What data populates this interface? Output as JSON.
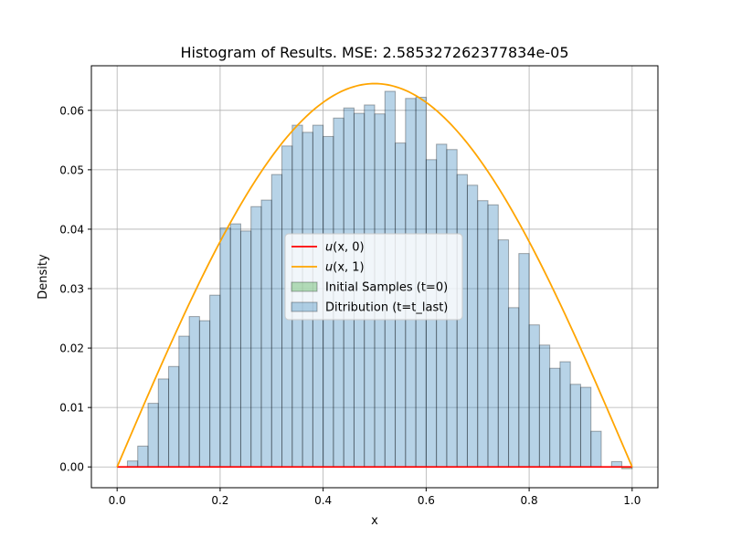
{
  "chart_data": {
    "type": "histogram",
    "title": "Histogram of Results. MSE: 2.585327262377834e-05",
    "xlabel": "x",
    "ylabel": "Density",
    "xlim": [
      -0.05,
      1.05
    ],
    "ylim": [
      -0.0035,
      0.0675
    ],
    "xticks": [
      0.0,
      0.2,
      0.4,
      0.6,
      0.8,
      1.0
    ],
    "xtick_labels": [
      "0.0",
      "0.2",
      "0.4",
      "0.6",
      "0.8",
      "1.0"
    ],
    "yticks": [
      0.0,
      0.01,
      0.02,
      0.03,
      0.04,
      0.05,
      0.06
    ],
    "ytick_labels": [
      "0.00",
      "0.01",
      "0.02",
      "0.03",
      "0.04",
      "0.05",
      "0.06"
    ],
    "grid": true,
    "legend_position": "center",
    "series": [
      {
        "name": "u(x, 0)",
        "type": "line",
        "color": "#ff0000",
        "x": [
          0,
          1
        ],
        "y": [
          0,
          0
        ]
      },
      {
        "name": "u(x, 1)",
        "type": "line",
        "color": "#ffa500",
        "function": "peak*sin(pi*x)",
        "peak": 0.0645
      },
      {
        "name": "Initial Samples (t=0)",
        "type": "hist",
        "color": "#2ca02c",
        "bin_edges": [
          0.98,
          1.0
        ],
        "values": [
          -0.0003
        ]
      },
      {
        "name": "Ditribution (t=t_last)",
        "type": "hist",
        "color": "#1f77b4",
        "bin_edges": [
          0.0,
          0.02,
          0.04,
          0.06,
          0.08,
          0.1,
          0.12,
          0.14,
          0.16,
          0.18,
          0.2,
          0.22,
          0.24,
          0.26,
          0.28,
          0.3,
          0.32,
          0.34,
          0.36,
          0.38,
          0.4,
          0.42,
          0.44,
          0.46,
          0.48,
          0.5,
          0.52,
          0.54,
          0.56,
          0.58,
          0.6,
          0.62,
          0.64,
          0.66,
          0.68,
          0.7,
          0.72,
          0.74,
          0.76,
          0.78,
          0.8,
          0.82,
          0.84,
          0.86,
          0.88,
          0.9,
          0.92,
          0.94,
          0.96,
          0.98,
          1.0
        ],
        "values": [
          0.0,
          0.001,
          0.0035,
          0.0107,
          0.0148,
          0.0169,
          0.022,
          0.0253,
          0.0246,
          0.0289,
          0.0402,
          0.0409,
          0.0397,
          0.0438,
          0.0449,
          0.0492,
          0.054,
          0.0575,
          0.0563,
          0.0575,
          0.0556,
          0.0587,
          0.0604,
          0.0595,
          0.0609,
          0.0594,
          0.0632,
          0.0545,
          0.062,
          0.0622,
          0.0517,
          0.0543,
          0.0534,
          0.0492,
          0.0474,
          0.0448,
          0.0441,
          0.0382,
          0.0268,
          0.0359,
          0.0239,
          0.0205,
          0.0166,
          0.0177,
          0.0139,
          0.0134,
          0.006,
          0.0,
          0.0009,
          0.0
        ]
      }
    ],
    "legend": {
      "entries": [
        {
          "label_main": "u",
          "label_rest": "(x, 0)",
          "color": "#ff0000",
          "kind": "line"
        },
        {
          "label_main": "u",
          "label_rest": "(x, 1)",
          "color": "#ffa500",
          "kind": "line"
        },
        {
          "label": "Initial Samples (t=0)",
          "color": "#2ca02c",
          "kind": "patch"
        },
        {
          "label": "Ditribution (t=t_last)",
          "color": "#1f77b4",
          "kind": "patch"
        }
      ]
    }
  }
}
